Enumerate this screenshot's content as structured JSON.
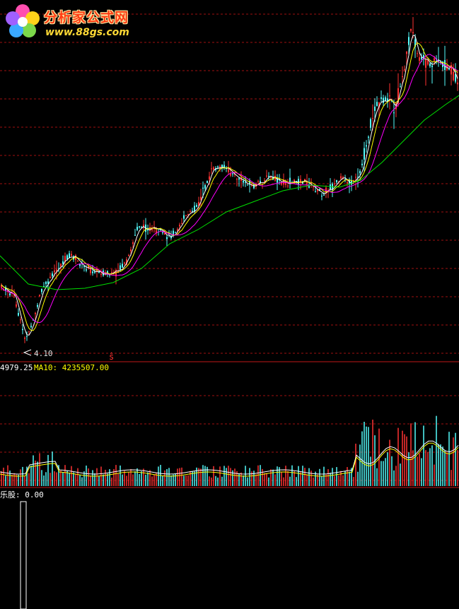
{
  "logo": {
    "title": "分析家公式网",
    "url": "www.88gs.com"
  },
  "price_panel": {
    "low_marker": "4.10",
    "signal_glyph": "ŝ"
  },
  "volume_panel": {
    "ma5_label": "4979.25",
    "ma10_label": "MA10: 4235507.00"
  },
  "indicator_panel": {
    "label": "乐股: 0.00"
  },
  "colors": {
    "up": "#ff3232",
    "down": "#54fcfc",
    "ma_white": "#ffffff",
    "ma_yellow": "#ffff00",
    "ma_magenta": "#ff00ff",
    "ma_green": "#00e000",
    "grid": "#a01010"
  }
}
